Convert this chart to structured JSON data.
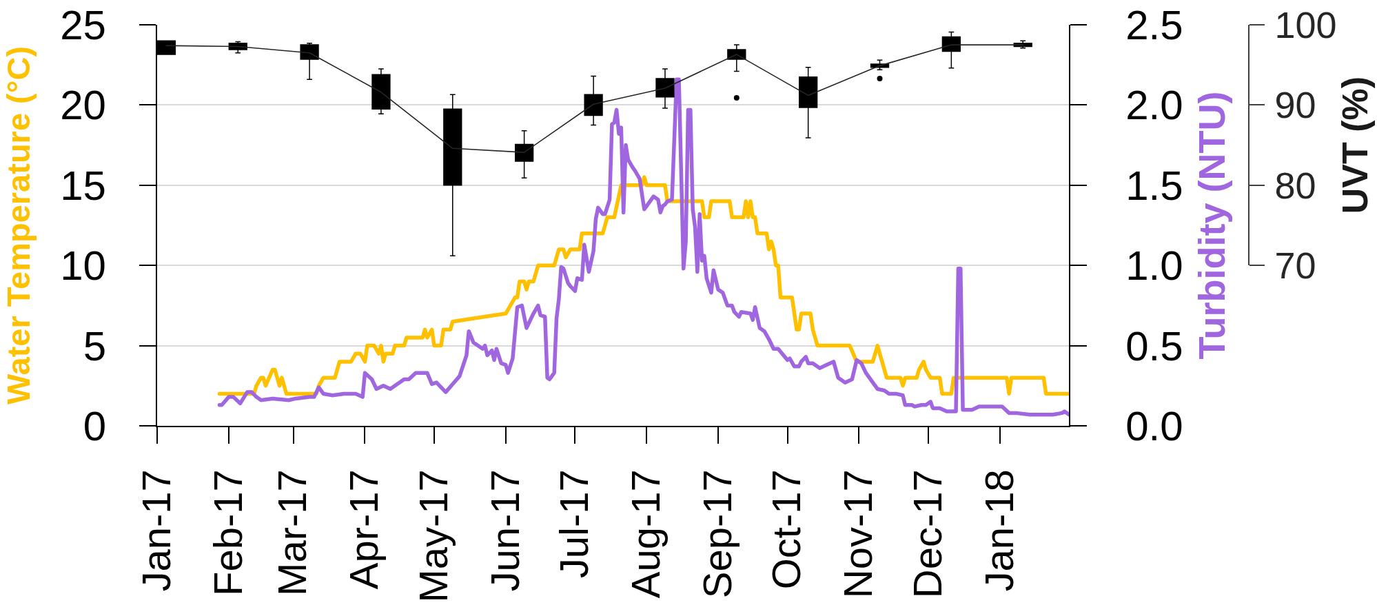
{
  "chart_data": {
    "type": "line",
    "xlim": [
      "2017-01-01",
      "2018-01-31"
    ],
    "xticks": [
      {
        "value": "2017-01-01",
        "label": "Jan-17"
      },
      {
        "value": "2017-02-01",
        "label": "Feb-17"
      },
      {
        "value": "2017-03-01",
        "label": "Mar-17"
      },
      {
        "value": "2017-04-01",
        "label": "Apr-17"
      },
      {
        "value": "2017-05-01",
        "label": "May-17"
      },
      {
        "value": "2017-06-01",
        "label": "Jun-17"
      },
      {
        "value": "2017-07-01",
        "label": "Jul-17"
      },
      {
        "value": "2017-08-01",
        "label": "Aug-17"
      },
      {
        "value": "2017-09-01",
        "label": "Sep-17"
      },
      {
        "value": "2017-10-01",
        "label": "Oct-17"
      },
      {
        "value": "2017-11-01",
        "label": "Nov-17"
      },
      {
        "value": "2017-12-01",
        "label": "Dec-17"
      },
      {
        "value": "2018-01-01",
        "label": "Jan-18"
      }
    ],
    "ylim": [
      0,
      25
    ],
    "yticks": [
      0,
      5,
      10,
      15,
      20,
      25
    ],
    "y2lim": [
      0,
      2.5
    ],
    "y2ticks": [
      {
        "value": 0,
        "label": "0.0"
      },
      0.5,
      {
        "value": 1,
        "label": "1.0"
      },
      1.5,
      {
        "value": 2,
        "label": "2.0"
      },
      2.5
    ],
    "y3lim": [
      70,
      100
    ],
    "y3ticks": [
      70,
      80,
      90,
      100
    ],
    "ylabel": "Water Temperature (°C)",
    "y2label": "Turbidity (NTU)",
    "y3label": "UVT (%)",
    "grid": "y",
    "marker": "none",
    "series": [
      {
        "color": "#ffc000",
        "axis": "y",
        "x": [
          "2017-01-28",
          "2017-02-12",
          "2017-02-13",
          "2017-02-15",
          "2017-02-16",
          "2017-02-17",
          "2017-02-20",
          "2017-02-21",
          "2017-02-23",
          "2017-02-24",
          "2017-02-26",
          "2017-03-11",
          "2017-03-12",
          "2017-03-14",
          "2017-03-19",
          "2017-03-21",
          "2017-03-26",
          "2017-03-28",
          "2017-03-30",
          "2017-04-01",
          "2017-04-02",
          "2017-04-05",
          "2017-04-07",
          "2017-04-08",
          "2017-04-09",
          "2017-04-10",
          "2017-04-13",
          "2017-04-14",
          "2017-04-18",
          "2017-04-19",
          "2017-04-26",
          "2017-04-27",
          "2017-04-28",
          "2017-04-30",
          "2017-05-01",
          "2017-05-04",
          "2017-05-05",
          "2017-05-08",
          "2017-05-09",
          "2017-06-01",
          "2017-06-05",
          "2017-06-06",
          "2017-06-07",
          "2017-06-09",
          "2017-06-10",
          "2017-06-11",
          "2017-06-13",
          "2017-06-15",
          "2017-06-22",
          "2017-06-24",
          "2017-06-26",
          "2017-06-27",
          "2017-06-29",
          "2017-07-03",
          "2017-07-04",
          "2017-07-13",
          "2017-07-15",
          "2017-07-18",
          "2017-07-21",
          "2017-07-30",
          "2017-07-31",
          "2017-08-01",
          "2017-08-09",
          "2017-08-10",
          "2017-08-25",
          "2017-08-26",
          "2017-08-28",
          "2017-08-29",
          "2017-09-06",
          "2017-09-07",
          "2017-09-12",
          "2017-09-13",
          "2017-09-14",
          "2017-09-15",
          "2017-09-16",
          "2017-09-17",
          "2017-09-18",
          "2017-09-22",
          "2017-09-23",
          "2017-09-24",
          "2017-09-25",
          "2017-09-26",
          "2017-09-27",
          "2017-09-28",
          "2017-10-03",
          "2017-10-05",
          "2017-10-06",
          "2017-10-07",
          "2017-10-11",
          "2017-10-12",
          "2017-10-14",
          "2017-10-28",
          "2017-10-31",
          "2017-11-07",
          "2017-11-09",
          "2017-11-11",
          "2017-11-13",
          "2017-11-19",
          "2017-11-20",
          "2017-11-21",
          "2017-11-26",
          "2017-11-27",
          "2017-11-29",
          "2017-11-30",
          "2017-12-02",
          "2017-12-06",
          "2017-12-07",
          "2017-12-11",
          "2017-12-12",
          "2018-01-04",
          "2018-01-05",
          "2018-01-06",
          "2018-01-20",
          "2018-01-21",
          "2018-01-31"
        ],
        "values": [
          2,
          2,
          2.5,
          3,
          3,
          2.5,
          3.5,
          3.5,
          2.5,
          3,
          2,
          2,
          2.5,
          3,
          3,
          4,
          4,
          4.5,
          4.5,
          4,
          5,
          5,
          4.5,
          5,
          4,
          4.5,
          4.5,
          5,
          5,
          5.5,
          5.5,
          6,
          5.5,
          6,
          5,
          5,
          6,
          6,
          6.5,
          7,
          8,
          8,
          9,
          9,
          8.5,
          9,
          9,
          10,
          10,
          11,
          11,
          10.5,
          11,
          11,
          12,
          12,
          13,
          13,
          15,
          15,
          15.5,
          15,
          15,
          14,
          14,
          13,
          13,
          14,
          14,
          13,
          13,
          14,
          13,
          14,
          13,
          13,
          12,
          12,
          11,
          11.5,
          11,
          10,
          10,
          8,
          8,
          6,
          6,
          7,
          7,
          6,
          5,
          5,
          4,
          4,
          5,
          4,
          3,
          3,
          2.5,
          3,
          3,
          3.5,
          4,
          3.5,
          3,
          3,
          2,
          2,
          3,
          3,
          2,
          3,
          3,
          2,
          2
        ]
      },
      {
        "color": "#a066e0",
        "axis": "y2",
        "x": [
          "2017-01-28",
          "2017-01-29",
          "2017-02-01",
          "2017-02-03",
          "2017-02-06",
          "2017-02-09",
          "2017-02-11",
          "2017-02-13",
          "2017-02-15",
          "2017-02-20",
          "2017-02-27",
          "2017-03-02",
          "2017-03-08",
          "2017-03-10",
          "2017-03-12",
          "2017-03-14",
          "2017-03-18",
          "2017-03-23",
          "2017-03-28",
          "2017-03-31",
          "2017-04-01",
          "2017-04-04",
          "2017-04-06",
          "2017-04-09",
          "2017-04-12",
          "2017-04-14",
          "2017-04-18",
          "2017-04-20",
          "2017-04-23",
          "2017-04-25",
          "2017-04-28",
          "2017-04-30",
          "2017-05-02",
          "2017-05-06",
          "2017-05-09",
          "2017-05-12",
          "2017-05-15",
          "2017-05-16",
          "2017-05-18",
          "2017-05-22",
          "2017-05-23",
          "2017-05-24",
          "2017-05-26",
          "2017-05-27",
          "2017-05-28",
          "2017-05-30",
          "2017-06-01",
          "2017-06-02",
          "2017-06-04",
          "2017-06-06",
          "2017-06-08",
          "2017-06-10",
          "2017-06-13",
          "2017-06-15",
          "2017-06-16",
          "2017-06-18",
          "2017-06-19",
          "2017-06-20",
          "2017-06-22",
          "2017-06-23",
          "2017-06-24",
          "2017-06-25",
          "2017-06-26",
          "2017-06-28",
          "2017-06-29",
          "2017-07-01",
          "2017-07-02",
          "2017-07-04",
          "2017-07-05",
          "2017-07-07",
          "2017-07-09",
          "2017-07-10",
          "2017-07-11",
          "2017-07-13",
          "2017-07-14",
          "2017-07-16",
          "2017-07-17",
          "2017-07-18",
          "2017-07-19",
          "2017-07-20",
          "2017-07-21",
          "2017-07-22",
          "2017-07-23",
          "2017-07-24",
          "2017-07-26",
          "2017-07-27",
          "2017-07-29",
          "2017-07-31",
          "2017-08-01",
          "2017-08-04",
          "2017-08-06",
          "2017-08-07",
          "2017-08-08",
          "2017-08-09",
          "2017-08-10",
          "2017-08-12",
          "2017-08-14",
          "2017-08-15",
          "2017-08-17",
          "2017-08-18",
          "2017-08-19",
          "2017-08-20",
          "2017-08-21",
          "2017-08-22",
          "2017-08-23",
          "2017-08-24",
          "2017-08-25",
          "2017-08-26",
          "2017-08-27",
          "2017-08-29",
          "2017-08-30",
          "2017-09-01",
          "2017-09-03",
          "2017-09-05",
          "2017-09-07",
          "2017-09-08",
          "2017-09-10",
          "2017-09-11",
          "2017-09-15",
          "2017-09-16",
          "2017-09-17",
          "2017-09-19",
          "2017-09-21",
          "2017-09-23",
          "2017-09-25",
          "2017-09-27",
          "2017-10-01",
          "2017-10-02",
          "2017-10-04",
          "2017-10-06",
          "2017-10-07",
          "2017-10-09",
          "2017-10-10",
          "2017-10-12",
          "2017-10-15",
          "2017-10-18",
          "2017-10-21",
          "2017-10-23",
          "2017-10-26",
          "2017-10-29",
          "2017-10-31",
          "2017-11-02",
          "2017-11-04",
          "2017-11-07",
          "2017-11-09",
          "2017-11-12",
          "2017-11-14",
          "2017-11-17",
          "2017-11-20",
          "2017-11-21",
          "2017-11-24",
          "2017-11-25",
          "2017-11-28",
          "2017-11-30",
          "2017-12-02",
          "2017-12-03",
          "2017-12-06",
          "2017-12-09",
          "2017-12-13",
          "2017-12-14",
          "2017-12-15",
          "2017-12-16",
          "2017-12-20",
          "2017-12-23",
          "2017-12-27",
          "2017-12-30",
          "2018-01-02",
          "2018-01-05",
          "2018-01-08",
          "2018-01-14",
          "2018-01-24",
          "2018-01-28",
          "2018-01-29",
          "2018-01-31"
        ],
        "values": [
          0.13,
          0.13,
          0.18,
          0.18,
          0.14,
          0.21,
          0.21,
          0.18,
          0.16,
          0.17,
          0.16,
          0.17,
          0.18,
          0.18,
          0.24,
          0.2,
          0.19,
          0.2,
          0.2,
          0.18,
          0.33,
          0.29,
          0.23,
          0.25,
          0.23,
          0.25,
          0.29,
          0.29,
          0.33,
          0.33,
          0.33,
          0.26,
          0.27,
          0.21,
          0.26,
          0.31,
          0.44,
          0.59,
          0.52,
          0.48,
          0.5,
          0.44,
          0.47,
          0.41,
          0.48,
          0.39,
          0.38,
          0.33,
          0.42,
          0.74,
          0.75,
          0.61,
          0.7,
          0.75,
          0.69,
          0.68,
          0.3,
          0.29,
          0.33,
          0.67,
          0.79,
          0.99,
          0.98,
          0.89,
          0.87,
          0.84,
          0.92,
          0.91,
          1.13,
          0.96,
          1.09,
          1.29,
          1.36,
          1.32,
          1.32,
          1.41,
          1.88,
          1.89,
          1.97,
          1.82,
          1.86,
          1.33,
          1.75,
          1.66,
          1.61,
          1.59,
          1.54,
          1.35,
          1.37,
          1.43,
          1.41,
          1.33,
          1.37,
          1.38,
          1.4,
          1.41,
          2.16,
          2.16,
          0.98,
          1.15,
          1.97,
          1.97,
          1.35,
          1.24,
          0.96,
          1.32,
          1.03,
          1.06,
          0.92,
          0.83,
          0.97,
          0.85,
          0.83,
          0.75,
          0.75,
          0.71,
          0.68,
          0.71,
          0.7,
          0.66,
          0.74,
          0.61,
          0.59,
          0.54,
          0.48,
          0.48,
          0.41,
          0.42,
          0.37,
          0.37,
          0.4,
          0.43,
          0.39,
          0.39,
          0.36,
          0.38,
          0.4,
          0.3,
          0.27,
          0.29,
          0.41,
          0.39,
          0.33,
          0.27,
          0.23,
          0.22,
          0.2,
          0.2,
          0.19,
          0.13,
          0.13,
          0.12,
          0.13,
          0.13,
          0.15,
          0.11,
          0.11,
          0.09,
          0.09,
          0.98,
          0.98,
          0.1,
          0.1,
          0.12,
          0.12,
          0.12,
          0.12,
          0.08,
          0.08,
          0.07,
          0.07,
          0.08,
          0.09,
          0.07
        ]
      },
      {
        "type": "box",
        "color": "#000000",
        "axis": "y3",
        "x": [
          "2017-01-05",
          "2017-02-05",
          "2017-03-08",
          "2017-04-08",
          "2017-05-09",
          "2017-06-09",
          "2017-07-09",
          "2017-08-09",
          "2017-09-09",
          "2017-10-10",
          "2017-11-10",
          "2017-12-11",
          "2018-01-11"
        ],
        "boxes": [
          {
            "low": 96.3,
            "q1": 96.3,
            "median": 97.4,
            "q3": 98.0,
            "high": 98.0
          },
          {
            "low": 96.5,
            "q1": 96.9,
            "median": 97.3,
            "q3": 97.7,
            "high": 97.9
          },
          {
            "low": 93.2,
            "q1": 95.7,
            "median": 96.5,
            "q3": 97.5,
            "high": 97.7
          },
          {
            "low": 88.9,
            "q1": 89.5,
            "median": 91.6,
            "q3": 93.8,
            "high": 94.5
          },
          {
            "low": 71.2,
            "q1": 80.0,
            "median": 84.6,
            "q3": 89.5,
            "high": 91.3
          },
          {
            "low": 80.9,
            "q1": 83.0,
            "median": 84.1,
            "q3": 85.1,
            "high": 86.8
          },
          {
            "low": 87.5,
            "q1": 88.7,
            "median": 90.1,
            "q3": 91.3,
            "high": 93.6
          },
          {
            "low": 89.6,
            "q1": 91.0,
            "median": 92.1,
            "q3": 93.3,
            "high": 94.5
          },
          {
            "low": 94.2,
            "q1": 95.7,
            "median": 96.3,
            "q3": 96.9,
            "high": 97.5,
            "outliers": [
              90.9
            ]
          },
          {
            "low": 85.9,
            "q1": 89.7,
            "median": 91.2,
            "q3": 93.5,
            "high": 94.7
          },
          {
            "low": 94.4,
            "q1": 94.7,
            "median": 94.9,
            "q3": 95.1,
            "high": 95.6,
            "outliers": [
              93.3
            ]
          },
          {
            "low": 94.6,
            "q1": 96.7,
            "median": 97.5,
            "q3": 98.5,
            "high": 99.1
          },
          {
            "low": 97.1,
            "q1": 97.3,
            "median": 97.5,
            "q3": 97.7,
            "high": 98.0
          }
        ]
      },
      {
        "color": "#262626",
        "axis": "y3",
        "x": [
          "2017-01-05",
          "2017-02-05",
          "2017-03-08",
          "2017-04-08",
          "2017-05-09",
          "2017-06-09",
          "2017-07-09",
          "2017-08-09",
          "2017-09-09",
          "2017-10-10",
          "2017-11-10",
          "2017-12-11",
          "2018-01-11"
        ],
        "values": [
          97.4,
          97.3,
          96.5,
          91.6,
          84.6,
          84.1,
          90.1,
          92.1,
          96.3,
          91.2,
          94.9,
          97.5,
          97.5
        ]
      }
    ]
  }
}
